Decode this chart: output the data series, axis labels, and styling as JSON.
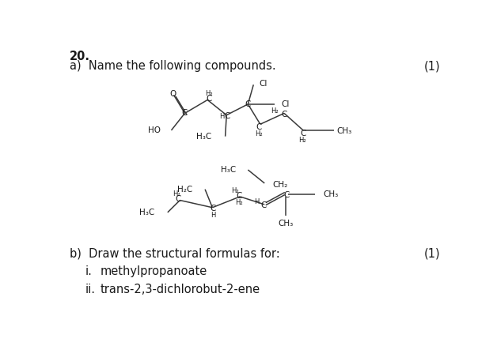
{
  "title_number": "20.",
  "section_a_label": "a)  Name the following compounds.",
  "section_a_marks": "(1)",
  "section_b_label": "b)  Draw the structural formulas for:",
  "section_b_marks": "(1)",
  "item_i_label": "i.",
  "item_i_text": "methylpropanoate",
  "item_ii_label": "ii.",
  "item_ii_text": "trans-2,3-dichlorobut-2-ene",
  "bg_color": "#ffffff",
  "text_color": "#1a1a1a",
  "bond_color": "#3a3a3a",
  "font_size_main": 10.5,
  "font_size_atom": 7.5,
  "font_size_sub": 6.0
}
